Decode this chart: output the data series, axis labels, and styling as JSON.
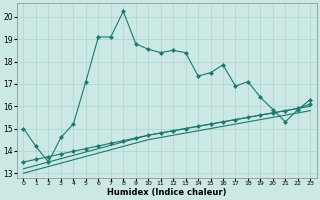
{
  "xlabel": "Humidex (Indice chaleur)",
  "bg_color": "#cce8e4",
  "grid_color": "#b0d8d0",
  "line_color": "#1a7a6e",
  "xlim": [
    -0.5,
    23.5
  ],
  "ylim": [
    12.8,
    20.6
  ],
  "yticks": [
    13,
    14,
    15,
    16,
    17,
    18,
    19,
    20
  ],
  "xticks": [
    0,
    1,
    2,
    3,
    4,
    5,
    6,
    7,
    8,
    9,
    10,
    11,
    12,
    13,
    14,
    15,
    16,
    17,
    18,
    19,
    20,
    21,
    22,
    23
  ],
  "main_line_x": [
    0,
    1,
    2,
    3,
    4,
    5,
    6,
    7,
    8,
    9,
    10,
    11,
    12,
    13,
    14,
    15,
    16,
    17,
    18,
    19,
    20,
    21,
    22,
    23
  ],
  "main_line_y": [
    15.0,
    14.2,
    13.5,
    14.6,
    15.2,
    17.1,
    19.1,
    19.1,
    20.25,
    18.8,
    18.55,
    18.4,
    18.5,
    18.4,
    17.35,
    17.5,
    17.85,
    16.9,
    17.1,
    16.4,
    15.85,
    15.3,
    15.85,
    16.3
  ],
  "line_bottom1_y": [
    13.0,
    13.15,
    13.3,
    13.45,
    13.6,
    13.75,
    13.9,
    14.05,
    14.2,
    14.35,
    14.5,
    14.6,
    14.7,
    14.8,
    14.9,
    15.0,
    15.1,
    15.2,
    15.3,
    15.4,
    15.5,
    15.6,
    15.7,
    15.8
  ],
  "line_bottom2_y": [
    13.2,
    13.35,
    13.5,
    13.65,
    13.8,
    13.95,
    14.1,
    14.25,
    14.4,
    14.55,
    14.7,
    14.8,
    14.9,
    15.0,
    15.1,
    15.2,
    15.3,
    15.4,
    15.5,
    15.6,
    15.7,
    15.8,
    15.9,
    16.0
  ],
  "line_bottom3_y": [
    13.5,
    13.62,
    13.74,
    13.86,
    13.98,
    14.1,
    14.22,
    14.34,
    14.46,
    14.58,
    14.7,
    14.8,
    14.9,
    15.0,
    15.1,
    15.2,
    15.3,
    15.4,
    15.5,
    15.6,
    15.7,
    15.8,
    15.9,
    16.1
  ]
}
